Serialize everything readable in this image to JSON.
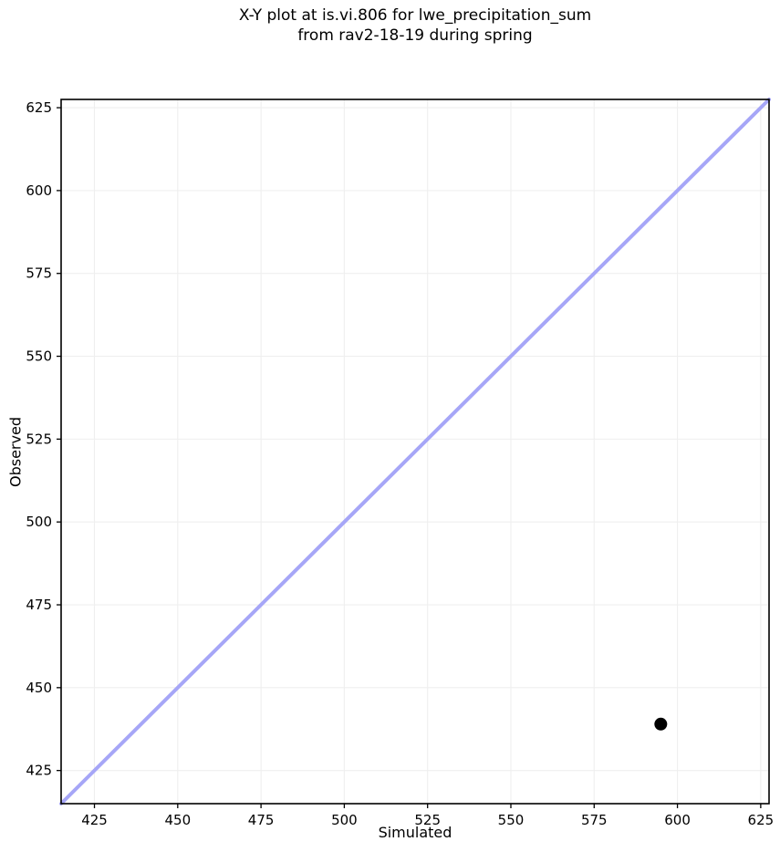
{
  "chart_data": {
    "type": "scatter",
    "title": "X-Y plot at is.vi.806 for lwe_precipitation_sum\nfrom rav2-18-19 during spring",
    "title_lines": [
      "X-Y plot at is.vi.806 for lwe_precipitation_sum",
      "from rav2-18-19 during spring"
    ],
    "xlabel": "Simulated",
    "ylabel": "Observed",
    "xlim": [
      415,
      627.5
    ],
    "ylim": [
      415,
      627.5
    ],
    "xticks": [
      425,
      450,
      475,
      500,
      525,
      550,
      575,
      600,
      625
    ],
    "yticks": [
      425,
      450,
      475,
      500,
      525,
      550,
      575,
      600,
      625
    ],
    "grid": true,
    "grid_color": "#efefef",
    "background_color": "#ffffff",
    "spine_color": "#000000",
    "text_color": "#000000",
    "series": [
      {
        "name": "identity-line",
        "type": "line",
        "x": [
          415,
          627.5
        ],
        "y": [
          415,
          627.5
        ],
        "color": "#a6a6f7",
        "width": 4
      },
      {
        "name": "observations",
        "type": "scatter",
        "points": [
          {
            "x": 595,
            "y": 439
          }
        ],
        "color": "#000000",
        "marker_radius": 7
      }
    ]
  }
}
